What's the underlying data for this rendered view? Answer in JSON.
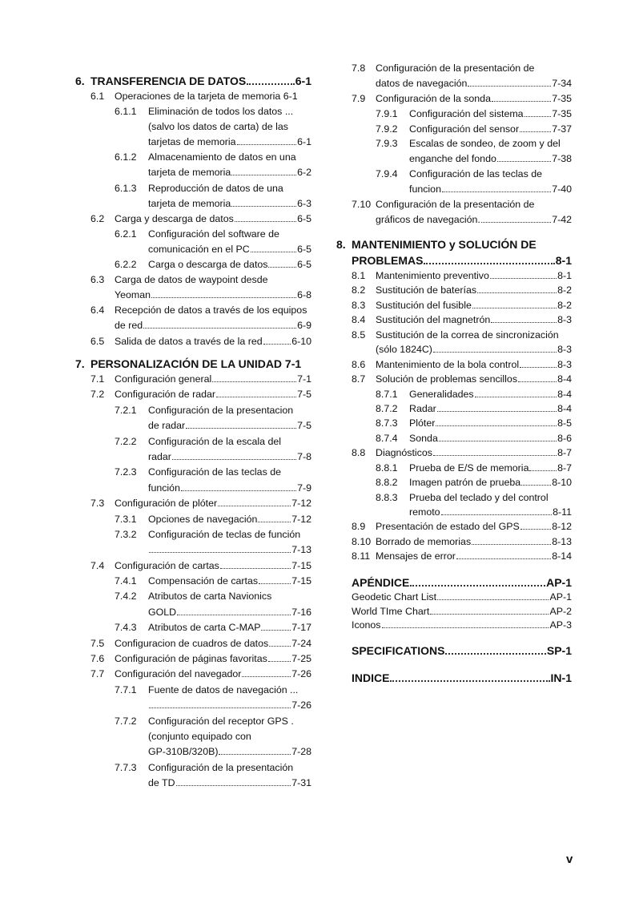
{
  "columns": [
    {
      "blocks": [
        {
          "heading": {
            "num": "6.",
            "lines": [
              "TRANSFERENCIA DE DATOS"
            ],
            "page": "6-1"
          },
          "entries": [
            {
              "num": "6.1",
              "level": 1,
              "lines": [
                "Operaciones de la tarjeta de memoria 6-1"
              ],
              "page": ""
            },
            {
              "num": "6.1.1",
              "level": 2,
              "lines": [
                "Eliminación de todos los datos  ...",
                " (salvo los datos de carta) de las",
                "tarjetas de memoria"
              ],
              "page": "6-1"
            },
            {
              "num": "6.1.2",
              "level": 2,
              "lines": [
                "Almacenamiento de datos en una",
                "tarjeta de memoria"
              ],
              "page": "6-2"
            },
            {
              "num": "6.1.3",
              "level": 2,
              "lines": [
                "Reproducción de datos de una",
                "tarjeta de memoria"
              ],
              "page": "6-3"
            },
            {
              "num": "6.2",
              "level": 1,
              "lines": [
                "Carga y descarga de datos"
              ],
              "page": "6-5"
            },
            {
              "num": "6.2.1",
              "level": 2,
              "lines": [
                "Configuración del software de",
                "comunicación en el PC"
              ],
              "page": "6-5"
            },
            {
              "num": "6.2.2",
              "level": 2,
              "lines": [
                "Carga o descarga de datos"
              ],
              "page": "6-5"
            },
            {
              "num": "6.3",
              "level": 1,
              "lines": [
                "Carga de datos de waypoint desde",
                "Yeoman"
              ],
              "page": "6-8"
            },
            {
              "num": "6.4",
              "level": 1,
              "lines": [
                "Recepción de datos a través de los equipos",
                "de red"
              ],
              "page": "6-9"
            },
            {
              "num": "6.5",
              "level": 1,
              "lines": [
                "Salida de datos a través de la red"
              ],
              "page": "6-10"
            }
          ]
        },
        {
          "heading": {
            "num": "7.",
            "lines": [
              "PERSONALIZACIÓN DE LA UNIDAD 7-1"
            ],
            "page": ""
          },
          "entries": [
            {
              "num": "7.1",
              "level": 1,
              "lines": [
                "Configuración general"
              ],
              "page": "7-1"
            },
            {
              "num": "7.2",
              "level": 1,
              "lines": [
                "Configuración de radar"
              ],
              "page": "7-5"
            },
            {
              "num": "7.2.1",
              "level": 2,
              "lines": [
                "Configuración de la presentacion",
                "de radar"
              ],
              "page": "7-5"
            },
            {
              "num": "7.2.2",
              "level": 2,
              "lines": [
                "Configuración de la escala del",
                "radar"
              ],
              "page": "7-8"
            },
            {
              "num": "7.2.3",
              "level": 2,
              "lines": [
                "Configuración de las teclas de",
                "función"
              ],
              "page": "7-9"
            },
            {
              "num": "7.3",
              "level": 1,
              "lines": [
                "Configuración de plóter"
              ],
              "page": "7-12"
            },
            {
              "num": "7.3.1",
              "level": 2,
              "lines": [
                "Opciones de navegación"
              ],
              "page": "7-12"
            },
            {
              "num": "7.3.2",
              "level": 2,
              "lines": [
                "Configuración de teclas de función",
                "    "
              ],
              "page": "7-13"
            },
            {
              "num": "7.4",
              "level": 1,
              "lines": [
                "Configuración de cartas"
              ],
              "page": "7-15"
            },
            {
              "num": "7.4.1",
              "level": 2,
              "lines": [
                "Compensación de cartas"
              ],
              "page": "7-15"
            },
            {
              "num": "7.4.2",
              "level": 2,
              "lines": [
                "Atributos de carta Navionics",
                "GOLD"
              ],
              "page": "7-16"
            },
            {
              "num": "7.4.3",
              "level": 2,
              "lines": [
                "Atributos de carta C-MAP"
              ],
              "page": "7-17"
            },
            {
              "num": "7.5",
              "level": 1,
              "lines": [
                "Configuracion de cuadros de datos"
              ],
              "page": "7-24"
            },
            {
              "num": "7.6",
              "level": 1,
              "lines": [
                "Configuración de páginas favoritas"
              ],
              "page": "7-25"
            },
            {
              "num": "7.7",
              "level": 1,
              "lines": [
                "Configuración del navegador"
              ],
              "page": "7-26"
            },
            {
              "num": "7.7.1",
              "level": 2,
              "lines": [
                "Fuente de datos de navegación ...",
                "    "
              ],
              "page": "7-26"
            },
            {
              "num": "7.7.2",
              "level": 2,
              "lines": [
                "Configuración del receptor GPS  .",
                " (conjunto equipado con",
                "GP-310B/320B)"
              ],
              "page": "7-28"
            },
            {
              "num": "7.7.3",
              "level": 2,
              "lines": [
                "Configuración de la presentación",
                "de TD"
              ],
              "page": "7-31"
            }
          ]
        }
      ]
    },
    {
      "blocks": [
        {
          "heading": null,
          "entries": [
            {
              "num": "7.8",
              "level": 1,
              "lines": [
                "Configuración de la presentación de",
                "datos de navegación"
              ],
              "page": "7-34"
            },
            {
              "num": "7.9",
              "level": 1,
              "lines": [
                "Configuración de la sonda"
              ],
              "page": "7-35"
            },
            {
              "num": "7.9.1",
              "level": 2,
              "lines": [
                "Configuración del sistema"
              ],
              "page": "7-35"
            },
            {
              "num": "7.9.2",
              "level": 2,
              "lines": [
                "Configuración del sensor"
              ],
              "page": "7-37"
            },
            {
              "num": "7.9.3",
              "level": 2,
              "lines": [
                "Escalas de sondeo, de zoom y del",
                "enganche del fondo"
              ],
              "page": "7-38"
            },
            {
              "num": "7.9.4",
              "level": 2,
              "lines": [
                "Configuración de las teclas de",
                "funcion"
              ],
              "page": "7-40"
            },
            {
              "num": "7.10",
              "level": 1,
              "lines": [
                "Configuración de la presentación de",
                "gráficos de navegación."
              ],
              "page": "7-42"
            }
          ]
        },
        {
          "heading": {
            "num": "8.",
            "lines": [
              "MANTENIMIENTO y SOLUCIÓN DE",
              "PROBLEMAS"
            ],
            "page": "8-1"
          },
          "entries": [
            {
              "num": "8.1",
              "level": 1,
              "lines": [
                "Mantenimiento preventivo"
              ],
              "page": "8-1"
            },
            {
              "num": "8.2",
              "level": 1,
              "lines": [
                "Sustitución de baterías"
              ],
              "page": "8-2"
            },
            {
              "num": "8.3",
              "level": 1,
              "lines": [
                "Sustitución del fusible"
              ],
              "page": "8-2"
            },
            {
              "num": "8.4",
              "level": 1,
              "lines": [
                "Sustitución del magnetrón"
              ],
              "page": "8-3"
            },
            {
              "num": "8.5",
              "level": 1,
              "lines": [
                "Sustitución de la correa de sincronización",
                "  (sólo 1824C)"
              ],
              "page": "8-3"
            },
            {
              "num": "8.6",
              "level": 1,
              "lines": [
                "Mantenimiento de la bola control"
              ],
              "page": "8-3"
            },
            {
              "num": "8.7",
              "level": 1,
              "lines": [
                "Solución de problemas sencillos"
              ],
              "page": "8-4"
            },
            {
              "num": "8.7.1",
              "level": 2,
              "lines": [
                "Generalidades"
              ],
              "page": "8-4"
            },
            {
              "num": "8.7.2",
              "level": 2,
              "lines": [
                "Radar"
              ],
              "page": "8-4"
            },
            {
              "num": "8.7.3",
              "level": 2,
              "lines": [
                "Plóter"
              ],
              "page": "8-5"
            },
            {
              "num": "8.7.4",
              "level": 2,
              "lines": [
                "Sonda"
              ],
              "page": "8-6"
            },
            {
              "num": "8.8",
              "level": 1,
              "lines": [
                "Diagnósticos"
              ],
              "page": "8-7"
            },
            {
              "num": "8.8.1",
              "level": 2,
              "lines": [
                "Prueba de E/S de memoria"
              ],
              "page": "8-7"
            },
            {
              "num": "8.8.2",
              "level": 2,
              "lines": [
                "Imagen patrón de prueba"
              ],
              "page": "8-10"
            },
            {
              "num": "8.8.3",
              "level": 2,
              "lines": [
                "Prueba del teclado y del control",
                "remoto"
              ],
              "page": "8-11"
            },
            {
              "num": "8.9",
              "level": 1,
              "lines": [
                "Presentación de estado del GPS"
              ],
              "page": "8-12"
            },
            {
              "num": "8.10",
              "level": 1,
              "lines": [
                "Borrado de memorias"
              ],
              "page": "8-13"
            },
            {
              "num": "8.11",
              "level": 1,
              "lines": [
                "Mensajes de error"
              ],
              "page": "8-14"
            }
          ]
        },
        {
          "heading": {
            "num": "",
            "lines": [
              "APÉNDICE"
            ],
            "page": "AP-1"
          },
          "entries": [
            {
              "num": "",
              "level": 0,
              "lines": [
                "Geodetic Chart List"
              ],
              "page": "AP-1"
            },
            {
              "num": "",
              "level": 0,
              "lines": [
                "World TIme Chart"
              ],
              "page": "AP-2"
            },
            {
              "num": "",
              "level": 0,
              "lines": [
                "Iconos"
              ],
              "page": "AP-3"
            }
          ]
        },
        {
          "heading": {
            "num": "",
            "lines": [
              "SPECIFICATIONS"
            ],
            "page": "SP-1"
          },
          "entries": []
        },
        {
          "heading": {
            "num": "",
            "lines": [
              "INDICE"
            ],
            "page": "IN-1"
          },
          "entries": []
        }
      ]
    }
  ],
  "page_number": "v"
}
